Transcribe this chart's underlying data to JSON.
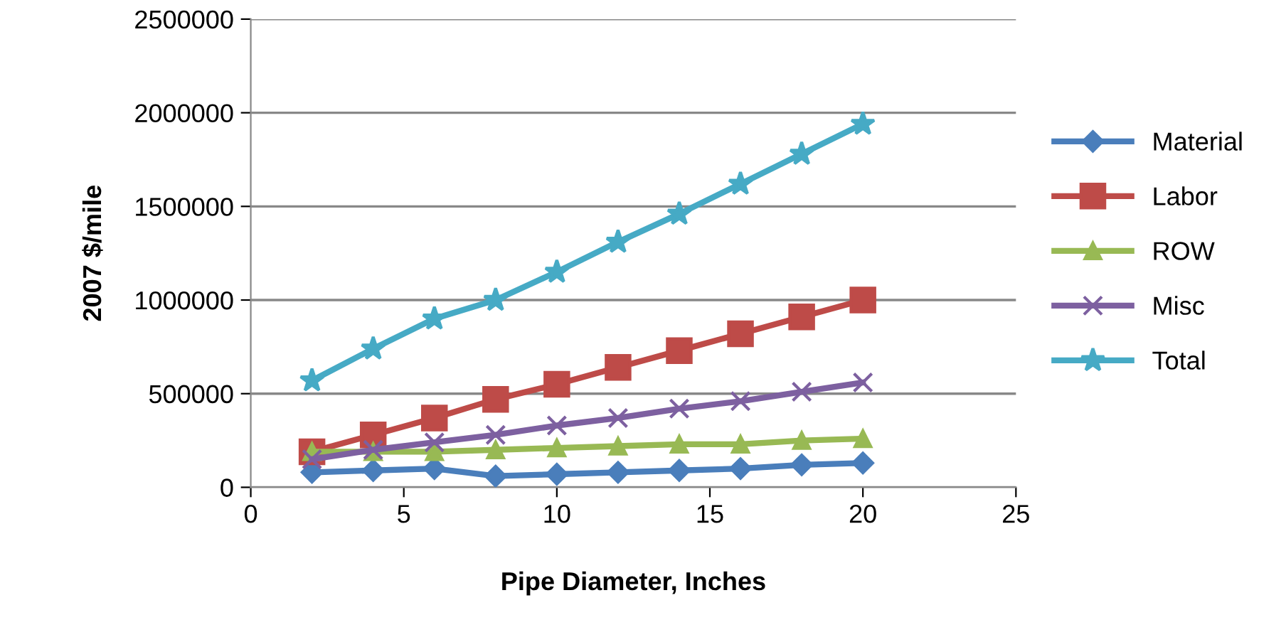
{
  "chart_data": {
    "type": "line",
    "xlabel": "Pipe Diameter, Inches",
    "ylabel": "2007 $/mile",
    "x": [
      2,
      4,
      6,
      8,
      10,
      12,
      14,
      16,
      18,
      20
    ],
    "series": [
      {
        "name": "Material",
        "color": "#4a7ebb",
        "marker": "diamond",
        "values": [
          80000,
          90000,
          100000,
          60000,
          70000,
          80000,
          90000,
          100000,
          120000,
          130000
        ]
      },
      {
        "name": "Labor",
        "color": "#be4b48",
        "marker": "square",
        "values": [
          190000,
          280000,
          370000,
          470000,
          550000,
          640000,
          730000,
          820000,
          910000,
          1000000
        ]
      },
      {
        "name": "ROW",
        "color": "#98b954",
        "marker": "triangle",
        "values": [
          190000,
          190000,
          190000,
          200000,
          210000,
          220000,
          230000,
          230000,
          250000,
          260000
        ]
      },
      {
        "name": "Misc",
        "color": "#7d60a0",
        "marker": "cross",
        "values": [
          150000,
          200000,
          240000,
          280000,
          330000,
          370000,
          420000,
          460000,
          510000,
          560000
        ]
      },
      {
        "name": "Total",
        "color": "#46aac5",
        "marker": "star",
        "values": [
          570000,
          740000,
          900000,
          1000000,
          1150000,
          1310000,
          1460000,
          1620000,
          1780000,
          1940000
        ]
      }
    ],
    "xlim": [
      0,
      25
    ],
    "xticks": [
      0,
      5,
      10,
      15,
      20,
      25
    ],
    "ylim": [
      0,
      2500000
    ],
    "yticks": [
      0,
      500000,
      1000000,
      1500000,
      2000000,
      2500000
    ],
    "grid": "y",
    "legend": "right"
  }
}
